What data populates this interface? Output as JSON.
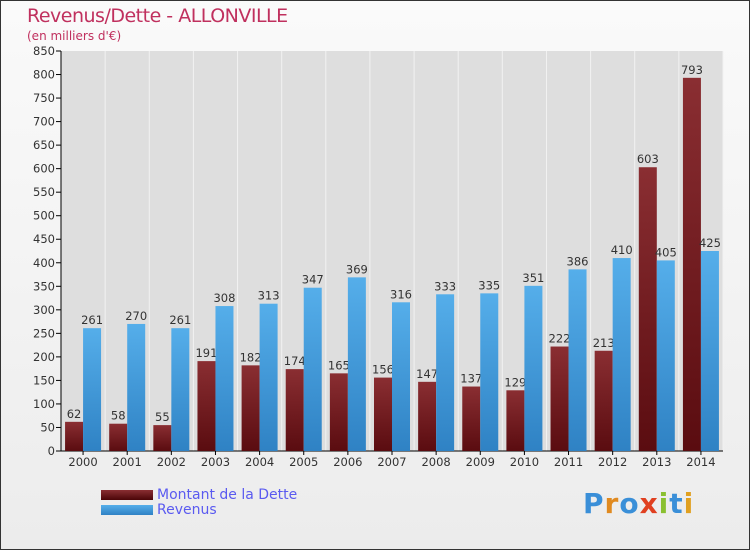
{
  "chart_data": {
    "type": "bar",
    "title": "Revenus/Dette - ALLONVILLE",
    "subtitle": "(en milliers d'€)",
    "categories": [
      "2000",
      "2001",
      "2002",
      "2003",
      "2004",
      "2005",
      "2006",
      "2007",
      "2008",
      "2009",
      "2010",
      "2011",
      "2012",
      "2013",
      "2014"
    ],
    "series": [
      {
        "name": "Montant de la Dette",
        "color": "#7a1e22",
        "values": [
          62,
          58,
          55,
          191,
          182,
          174,
          165,
          156,
          147,
          137,
          129,
          222,
          213,
          603,
          793
        ]
      },
      {
        "name": "Revenus",
        "color": "#4aa3e0",
        "values": [
          261,
          270,
          261,
          308,
          313,
          347,
          369,
          316,
          333,
          335,
          351,
          386,
          410,
          405,
          425
        ]
      }
    ],
    "ylim": [
      0,
      850
    ],
    "yticks": [
      0,
      50,
      100,
      150,
      200,
      250,
      300,
      350,
      400,
      450,
      500,
      550,
      600,
      650,
      700,
      750,
      800,
      850
    ],
    "grid": true,
    "legend_position": "bottom-left"
  },
  "logo": "Proxiti"
}
